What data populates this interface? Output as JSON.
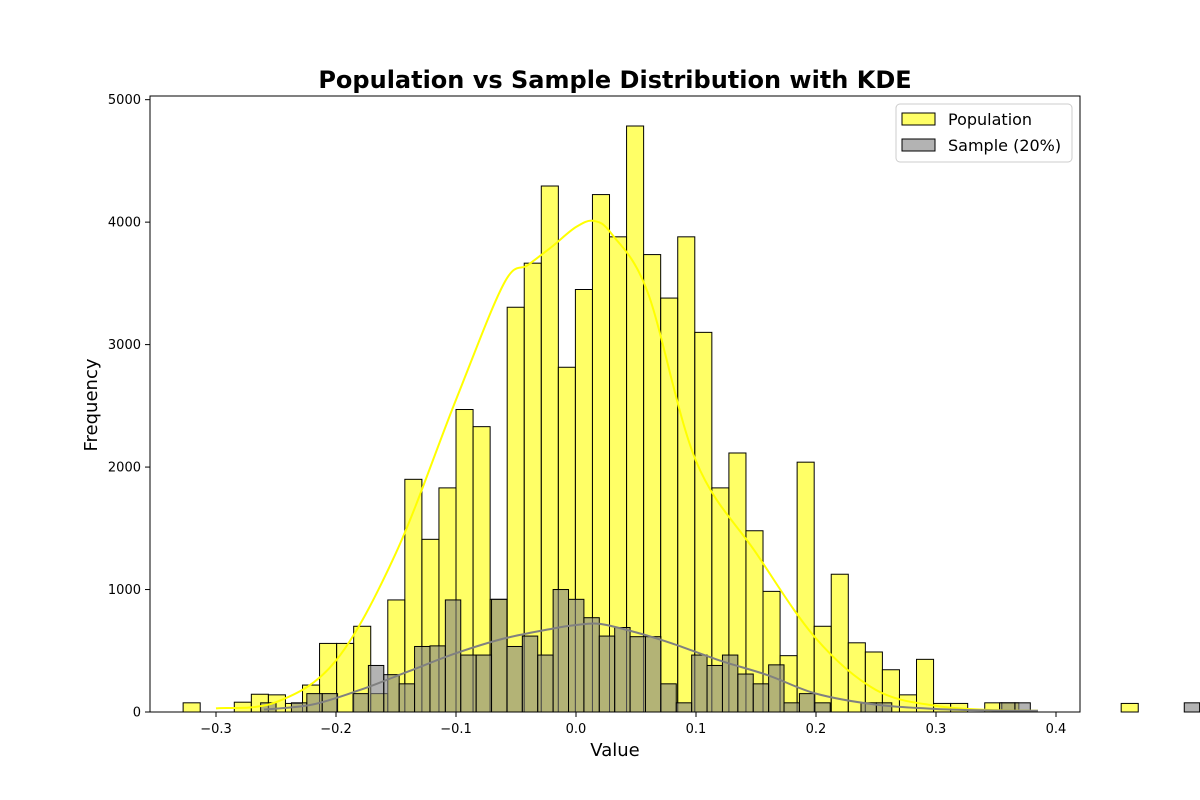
{
  "chart_data": {
    "type": "bar",
    "subtype": "histogram-with-kde",
    "title": "Population vs Sample Distribution with KDE",
    "xlabel": "Value",
    "ylabel": "Frequency",
    "xlim": [
      -0.355,
      0.42
    ],
    "ylim": [
      0,
      5030
    ],
    "xticks": [
      -0.3,
      -0.2,
      -0.1,
      0.0,
      0.1,
      0.2,
      0.3,
      0.4
    ],
    "xtick_labels": [
      "−0.3",
      "−0.2",
      "−0.1",
      "0.0",
      "0.1",
      "0.2",
      "0.3",
      "0.4"
    ],
    "yticks": [
      0,
      1000,
      2000,
      3000,
      4000,
      5000
    ],
    "ytick_labels": [
      "0",
      "1000",
      "2000",
      "3000",
      "4000",
      "5000"
    ],
    "grid": false,
    "legend_position": "top-right",
    "series": [
      {
        "name": "Population",
        "color": "#ffff00",
        "alpha": 0.6,
        "edgecolor": "#000000",
        "kde_color": "#ffff00",
        "bin_start": -0.3274,
        "bin_width": 0.014213,
        "values": [
          75,
          0,
          0,
          80,
          145,
          140,
          70,
          220,
          560,
          560,
          700,
          150,
          915,
          1900,
          1410,
          1830,
          2470,
          2330,
          920,
          3305,
          3665,
          4295,
          2815,
          3450,
          4225,
          3880,
          4785,
          3735,
          3380,
          3880,
          3100,
          1830,
          2115,
          1480,
          985,
          460,
          2040,
          700,
          1125,
          565,
          490,
          345,
          140,
          430,
          70,
          70,
          0,
          75,
          75,
          0,
          0,
          0,
          0,
          0,
          0,
          70
        ],
        "kde": {
          "x": [
            -0.3,
            -0.25,
            -0.2,
            -0.15,
            -0.1,
            -0.06,
            -0.04,
            -0.02,
            0.0,
            0.015,
            0.03,
            0.06,
            0.1,
            0.15,
            0.2,
            0.25,
            0.3,
            0.35,
            0.385
          ],
          "y": [
            30,
            80,
            420,
            1300,
            2550,
            3500,
            3650,
            3800,
            3960,
            4010,
            3900,
            3420,
            2050,
            1300,
            600,
            180,
            50,
            15,
            10
          ]
        }
      },
      {
        "name": "Sample (20%)",
        "color": "#808080",
        "alpha": 0.6,
        "edgecolor": "#000000",
        "kde_color": "#808080",
        "bin_start": -0.2628,
        "bin_width": 0.012828,
        "values": [
          75,
          0,
          75,
          150,
          150,
          0,
          150,
          380,
          305,
          230,
          535,
          540,
          915,
          465,
          465,
          920,
          535,
          620,
          465,
          1000,
          920,
          770,
          620,
          690,
          615,
          615,
          230,
          75,
          465,
          380,
          465,
          310,
          230,
          385,
          75,
          150,
          75,
          0,
          0,
          75,
          75,
          0,
          0,
          0,
          0,
          0,
          0,
          0,
          75,
          75,
          0,
          0,
          0,
          0,
          0,
          0,
          0,
          0,
          0,
          0,
          75
        ],
        "kde": {
          "x": [
            -0.26,
            -0.22,
            -0.18,
            -0.14,
            -0.1,
            -0.06,
            -0.02,
            0.0,
            0.02,
            0.05,
            0.08,
            0.12,
            0.16,
            0.2,
            0.25,
            0.3,
            0.35,
            0.385
          ],
          "y": [
            20,
            60,
            180,
            330,
            480,
            600,
            680,
            710,
            720,
            650,
            560,
            420,
            300,
            150,
            60,
            25,
            12,
            10
          ]
        }
      }
    ]
  }
}
